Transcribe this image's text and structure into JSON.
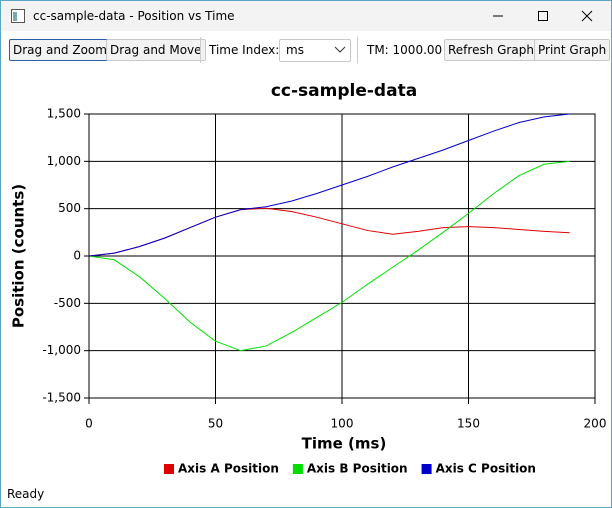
{
  "window": {
    "title": "cc-sample-data - Position vs Time"
  },
  "toolbar": {
    "drag_zoom": "Drag and Zoom",
    "drag_move": "Drag and Move",
    "time_index_label": "Time Index:",
    "time_index_value": "ms",
    "tm": "TM: 1000.00",
    "refresh": "Refresh Graph",
    "print": "Print Graph"
  },
  "chart_data": {
    "type": "line",
    "title": "cc-sample-data",
    "x_label": "Time (ms)",
    "y_label": "Position (counts)",
    "x": [
      0,
      10,
      20,
      30,
      40,
      50,
      60,
      70,
      80,
      90,
      100,
      110,
      120,
      130,
      140,
      150,
      160,
      170,
      180,
      190
    ],
    "series": [
      {
        "name": "Axis A Position",
        "color": "#e00000",
        "values": [
          0,
          30,
          100,
          190,
          300,
          410,
          490,
          505,
          470,
          410,
          340,
          270,
          230,
          260,
          300,
          310,
          300,
          280,
          260,
          245
        ]
      },
      {
        "name": "Axis B Position",
        "color": "#00e000",
        "values": [
          0,
          -40,
          -220,
          -450,
          -700,
          -900,
          -1000,
          -950,
          -810,
          -650,
          -490,
          -300,
          -120,
          60,
          250,
          450,
          660,
          850,
          970,
          1000
        ]
      },
      {
        "name": "Axis C Position",
        "color": "#0000cc",
        "values": [
          0,
          30,
          100,
          190,
          300,
          410,
          490,
          520,
          580,
          660,
          750,
          840,
          940,
          1030,
          1120,
          1220,
          1320,
          1410,
          1470,
          1500
        ]
      }
    ],
    "xlim": [
      0,
      200
    ],
    "xticks": [
      0,
      50,
      100,
      150,
      200
    ],
    "ylim": [
      -1500,
      1500
    ],
    "yticks": [
      {
        "value": -1500,
        "label": "-1,500"
      },
      {
        "value": -1000,
        "label": "-1,000"
      },
      -500,
      0,
      500,
      {
        "value": 1000,
        "label": "1,000"
      },
      {
        "value": 1500,
        "label": "1,500"
      }
    ],
    "grid": true,
    "legend": "bottom"
  },
  "status": "Ready"
}
